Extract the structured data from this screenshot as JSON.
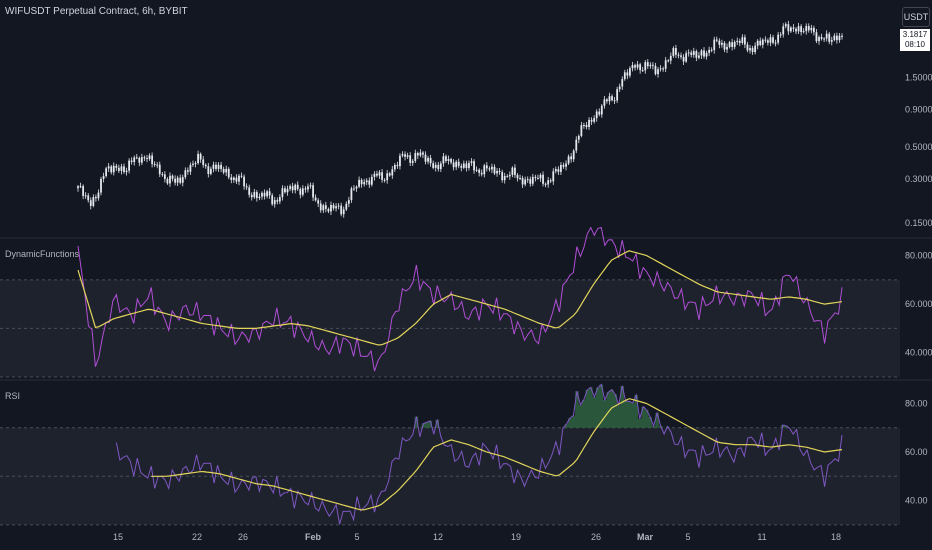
{
  "header": {
    "title": "WIFUSDT Perpetual Contract, 6h, BYBIT"
  },
  "currency_button": {
    "label": "USDT"
  },
  "price_tag": {
    "price": "3.1817",
    "countdown": "08:10"
  },
  "colors": {
    "background": "#131722",
    "candle": "#e6e8ee",
    "osc_line": "#b04fd6",
    "rsi_line": "#7e57c2",
    "signal": "#e3d55a",
    "band": "#1e222d",
    "grid": "#4a4e5a"
  },
  "chart_data": [
    {
      "type": "candlestick",
      "title": "WIFUSDT Perpetual Contract, 6h, BYBIT",
      "y_scale": "log",
      "y_ticks": [
        "1.5000",
        "0.9000",
        "0.5000",
        "0.3000",
        "0.1500"
      ],
      "y_tick_values": [
        1.5,
        0.9,
        0.5,
        0.3,
        0.15
      ],
      "x_ticks": [
        "15",
        "22",
        "26",
        "Feb",
        "5",
        "12",
        "19",
        "26",
        "Mar",
        "5",
        "11",
        "18"
      ],
      "close_path": [
        [
          "15",
          0.26
        ],
        [
          "16",
          0.2
        ],
        [
          "17",
          0.3
        ],
        [
          "18",
          0.38
        ],
        [
          "19",
          0.34
        ],
        [
          "20",
          0.45
        ],
        [
          "21",
          0.39
        ],
        [
          "22",
          0.33
        ],
        [
          "23",
          0.27
        ],
        [
          "24",
          0.36
        ],
        [
          "25",
          0.4
        ],
        [
          "26",
          0.36
        ],
        [
          "27",
          0.34
        ],
        [
          "28",
          0.31
        ],
        [
          "29",
          0.25
        ],
        [
          "30",
          0.23
        ],
        [
          "31",
          0.22
        ],
        [
          "Feb 1",
          0.24
        ],
        [
          "Feb 2",
          0.27
        ],
        [
          "Feb 3",
          0.25
        ],
        [
          "Feb 4",
          0.2
        ],
        [
          "Feb 5",
          0.18
        ],
        [
          "Feb 6",
          0.2
        ],
        [
          "Feb 7",
          0.27
        ],
        [
          "Feb 8",
          0.31
        ],
        [
          "Feb 9",
          0.3
        ],
        [
          "Feb 10",
          0.36
        ],
        [
          "Feb 11",
          0.43
        ],
        [
          "Feb 12",
          0.44
        ],
        [
          "Feb 13",
          0.39
        ],
        [
          "Feb 14",
          0.38
        ],
        [
          "Feb 15",
          0.4
        ],
        [
          "Feb 16",
          0.36
        ],
        [
          "Feb 17",
          0.36
        ],
        [
          "Feb 18",
          0.34
        ],
        [
          "Feb 19",
          0.33
        ],
        [
          "Feb 20",
          0.31
        ],
        [
          "Feb 21",
          0.3
        ],
        [
          "Feb 22",
          0.29
        ],
        [
          "Feb 23",
          0.31
        ],
        [
          "Feb 24",
          0.36
        ],
        [
          "Feb 25",
          0.52
        ],
        [
          "Feb 26",
          0.75
        ],
        [
          "Feb 27",
          0.88
        ],
        [
          "Feb 28",
          1.1
        ],
        [
          "Feb 29",
          1.45
        ],
        [
          "Mar 1",
          1.9
        ],
        [
          "Mar 2",
          1.7
        ],
        [
          "Mar 3",
          1.75
        ],
        [
          "Mar 4",
          2.1
        ],
        [
          "Mar 5",
          2.2
        ],
        [
          "Mar 6",
          2.05
        ],
        [
          "Mar 7",
          2.4
        ],
        [
          "Mar 8",
          2.5
        ],
        [
          "Mar 9",
          2.6
        ],
        [
          "Mar 10",
          2.5
        ],
        [
          "Mar 11",
          2.45
        ],
        [
          "Mar 12",
          2.7
        ],
        [
          "Mar 13",
          3.0
        ],
        [
          "Mar 14",
          3.4
        ],
        [
          "Mar 15",
          3.1
        ],
        [
          "Mar 16",
          3.0
        ],
        [
          "Mar 17",
          2.6
        ],
        [
          "Mar 18",
          3.0
        ]
      ]
    },
    {
      "type": "line",
      "title": "DynamicFunctions",
      "y_ticks": [
        "80.0000",
        "60.0000",
        "40.0000"
      ],
      "y_tick_values": [
        80,
        60,
        40
      ],
      "bands": [
        70,
        50,
        30
      ],
      "series": [
        {
          "values": [
            82,
            35,
            62,
            55,
            64,
            52,
            58,
            56,
            50,
            46,
            48,
            54,
            52,
            46,
            41,
            45,
            40,
            35,
            60,
            72,
            64,
            62,
            55,
            60,
            56,
            48,
            46,
            60,
            78,
            92,
            85,
            80,
            72,
            68,
            62,
            58,
            64,
            62,
            64,
            56,
            74,
            60,
            48,
            62
          ]
        },
        {
          "values": [
            74,
            50,
            54,
            56,
            58,
            56,
            54,
            52,
            51,
            50,
            50,
            51,
            52,
            51,
            49,
            47,
            45,
            43,
            46,
            52,
            60,
            64,
            62,
            60,
            58,
            55,
            52,
            50,
            56,
            68,
            78,
            82,
            80,
            76,
            72,
            68,
            65,
            64,
            63,
            62,
            63,
            62,
            60,
            61
          ]
        }
      ]
    },
    {
      "type": "line",
      "title": "RSI",
      "y_ticks": [
        "80.00",
        "60.00",
        "40.00"
      ],
      "y_tick_values": [
        80,
        60,
        40
      ],
      "bands": [
        70,
        50,
        30
      ],
      "series": [
        {
          "values": [
            null,
            null,
            62,
            55,
            50,
            48,
            52,
            56,
            50,
            46,
            48,
            46,
            42,
            40,
            36,
            34,
            38,
            40,
            60,
            70,
            72,
            60,
            55,
            62,
            55,
            48,
            52,
            62,
            80,
            86,
            84,
            82,
            76,
            70,
            62,
            58,
            62,
            58,
            66,
            60,
            72,
            58,
            50,
            62
          ]
        },
        {
          "values": [
            null,
            null,
            null,
            null,
            50,
            50,
            51,
            52,
            51,
            49,
            47,
            46,
            44,
            42,
            40,
            38,
            36,
            38,
            44,
            52,
            62,
            65,
            63,
            60,
            58,
            55,
            52,
            50,
            56,
            68,
            78,
            82,
            80,
            76,
            72,
            68,
            64,
            63,
            63,
            62,
            63,
            62,
            60,
            61
          ]
        }
      ]
    }
  ]
}
